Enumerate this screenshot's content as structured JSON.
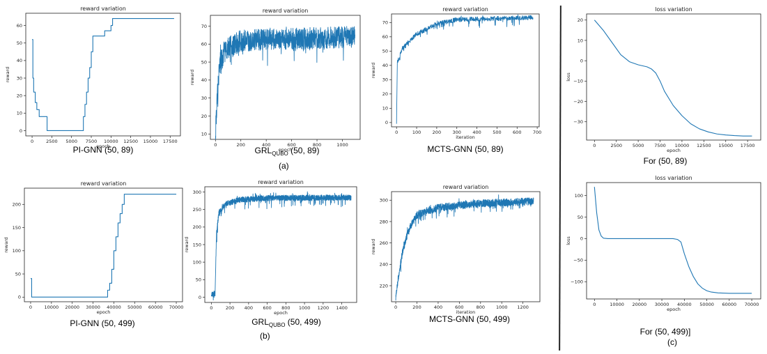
{
  "captions": {
    "row_a": "(a)",
    "row_b": "(b)",
    "col_c": "(c)"
  },
  "colors": {
    "line": "#1f77b4",
    "axes": "#222222"
  },
  "chart_data": [
    {
      "id": "a1",
      "type": "line",
      "title": "reward variation",
      "xlabel": "epoch",
      "ylabel": "reward",
      "caption_main": "PI-GNN (50, 89)",
      "caption_sub": "",
      "caption_tail": "",
      "xlim": [
        -800,
        18800
      ],
      "ylim": [
        -3,
        67
      ],
      "xticks": [
        0,
        2500,
        5000,
        7500,
        10000,
        12500,
        15000,
        17500
      ],
      "yticks": [
        0,
        10,
        20,
        30,
        40,
        50,
        60
      ],
      "step": true,
      "x": [
        0,
        100,
        200,
        400,
        600,
        900,
        1500,
        1900,
        6300,
        6500,
        6700,
        6900,
        7100,
        7300,
        7500,
        7700,
        8400,
        9200,
        10000,
        10200,
        18000
      ],
      "y": [
        52,
        30,
        22,
        16,
        12,
        8,
        8,
        0,
        0,
        8,
        15,
        22,
        30,
        36,
        45,
        54,
        54,
        57,
        60,
        64,
        64
      ]
    },
    {
      "id": "a2",
      "type": "line",
      "title": "reward variation",
      "xlabel": "epoch",
      "ylabel": "reward",
      "caption_main": "GRL",
      "caption_sub": "QUBO",
      "caption_tail": " (50, 89)",
      "xlim": [
        -40,
        1140
      ],
      "ylim": [
        7,
        76
      ],
      "xticks": [
        0,
        200,
        400,
        600,
        800,
        1000
      ],
      "yticks": [
        10,
        20,
        30,
        40,
        50,
        60,
        70
      ],
      "noisy": {
        "xmax": 1100,
        "n": 1100,
        "seed": 7,
        "curve": [
          [
            0,
            10
          ],
          [
            10,
            25
          ],
          [
            30,
            48
          ],
          [
            80,
            57
          ],
          [
            200,
            62
          ],
          [
            1100,
            64
          ]
        ],
        "noise": 6,
        "spike": 9
      }
    },
    {
      "id": "a3",
      "type": "line",
      "title": "reward variation",
      "xlabel": "iteration",
      "ylabel": "reward",
      "caption_main": "MCTS-GNN (50, 89)",
      "caption_sub": "",
      "caption_tail": "",
      "xlim": [
        -25,
        710
      ],
      "ylim": [
        -3,
        76
      ],
      "xticks": [
        0,
        100,
        200,
        300,
        400,
        500,
        600,
        700
      ],
      "yticks": [
        0,
        10,
        20,
        30,
        40,
        50,
        60,
        70
      ],
      "noisy": {
        "xmax": 680,
        "n": 680,
        "seed": 3,
        "curve": [
          [
            0,
            0
          ],
          [
            4,
            42
          ],
          [
            30,
            52
          ],
          [
            100,
            62
          ],
          [
            200,
            69
          ],
          [
            300,
            72
          ],
          [
            680,
            73.5
          ]
        ],
        "noise": 1.6,
        "spike": 5
      }
    },
    {
      "id": "c1",
      "type": "line",
      "title": "loss variation",
      "xlabel": "epoch",
      "ylabel": "loss",
      "caption_main": "For (50, 89)",
      "caption_sub": "",
      "caption_tail": "",
      "xlim": [
        -900,
        19000
      ],
      "ylim": [
        -39,
        23
      ],
      "xticks": [
        0,
        2500,
        5000,
        7500,
        10000,
        12500,
        15000,
        17500
      ],
      "yticks": [
        20,
        10,
        0,
        -10,
        -20,
        -30
      ],
      "x": [
        0,
        1000,
        2000,
        3000,
        4000,
        5000,
        6000,
        6500,
        7000,
        7500,
        8000,
        9000,
        10000,
        11000,
        12000,
        13000,
        14000,
        15000,
        16000,
        17000,
        18000
      ],
      "y": [
        20,
        15,
        9,
        3,
        -0.5,
        -2,
        -3,
        -4,
        -6,
        -10,
        -15,
        -22,
        -27,
        -31,
        -33.5,
        -35,
        -36,
        -36.5,
        -36.8,
        -37,
        -37
      ]
    },
    {
      "id": "b1",
      "type": "line",
      "title": "reward variation",
      "xlabel": "epoch",
      "ylabel": "reward",
      "caption_main": "PI-GNN (50, 499)",
      "caption_sub": "",
      "caption_tail": "",
      "xlim": [
        -3000,
        73000
      ],
      "ylim": [
        -10,
        235
      ],
      "xticks": [
        0,
        10000,
        20000,
        30000,
        40000,
        50000,
        60000,
        70000
      ],
      "yticks": [
        0,
        50,
        100,
        150,
        200
      ],
      "step": true,
      "x": [
        0,
        500,
        36000,
        37000,
        38000,
        39000,
        40000,
        41000,
        42000,
        43000,
        44000,
        45000,
        46000,
        70000
      ],
      "y": [
        40,
        0,
        0,
        15,
        30,
        60,
        100,
        130,
        160,
        180,
        200,
        222,
        222,
        222
      ]
    },
    {
      "id": "b2",
      "type": "line",
      "title": "reward variation",
      "xlabel": "epoch",
      "ylabel": "reward",
      "caption_main": "GRL",
      "caption_sub": "QUBO",
      "caption_tail": " (50, 499)",
      "xlim": [
        -70,
        1560
      ],
      "ylim": [
        -15,
        315
      ],
      "xticks": [
        0,
        200,
        400,
        600,
        800,
        1000,
        1200,
        1400
      ],
      "yticks": [
        0,
        50,
        100,
        150,
        200,
        250,
        300
      ],
      "noisy": {
        "xmax": 1500,
        "n": 1500,
        "seed": 11,
        "curve": [
          [
            0,
            10
          ],
          [
            40,
            10
          ],
          [
            55,
            180
          ],
          [
            80,
            240
          ],
          [
            150,
            265
          ],
          [
            300,
            278
          ],
          [
            600,
            283
          ],
          [
            1500,
            284
          ]
        ],
        "noise": 8,
        "spike": 25
      }
    },
    {
      "id": "b3",
      "type": "line",
      "title": "reward variation",
      "xlabel": "iteration",
      "ylabel": "reward",
      "caption_main": "MCTS-GNN (50, 499)",
      "caption_sub": "",
      "caption_tail": "",
      "xlim": [
        -40,
        1360
      ],
      "ylim": [
        205,
        308
      ],
      "xticks": [
        0,
        200,
        400,
        600,
        800,
        1000,
        1200
      ],
      "yticks": [
        220,
        240,
        260,
        280,
        300
      ],
      "noisy": {
        "xmax": 1300,
        "n": 1300,
        "seed": 5,
        "curve": [
          [
            0,
            208
          ],
          [
            20,
            225
          ],
          [
            60,
            250
          ],
          [
            120,
            272
          ],
          [
            200,
            286
          ],
          [
            400,
            293
          ],
          [
            800,
            297
          ],
          [
            1300,
            299
          ]
        ],
        "noise": 3.5,
        "spike": 8
      }
    },
    {
      "id": "c2",
      "type": "line",
      "title": "loss variation",
      "xlabel": "epoch",
      "ylabel": "loss",
      "caption_main": "For (50, 499)]",
      "caption_sub": "",
      "caption_tail": "",
      "xlim": [
        -3500,
        74000
      ],
      "ylim": [
        -140,
        130
      ],
      "xticks": [
        0,
        10000,
        20000,
        30000,
        40000,
        50000,
        60000,
        70000
      ],
      "yticks": [
        100,
        50,
        0,
        -50,
        -100
      ],
      "x": [
        0,
        1000,
        2000,
        3000,
        4000,
        6000,
        10000,
        20000,
        30000,
        35000,
        37000,
        38500,
        40000,
        42000,
        44000,
        46000,
        48000,
        50000,
        52000,
        55000,
        60000,
        70000
      ],
      "y": [
        120,
        60,
        20,
        6,
        1,
        0,
        0,
        0,
        0,
        0,
        -2,
        -8,
        -35,
        -65,
        -88,
        -105,
        -115,
        -121,
        -124,
        -126,
        -127,
        -127
      ]
    }
  ]
}
